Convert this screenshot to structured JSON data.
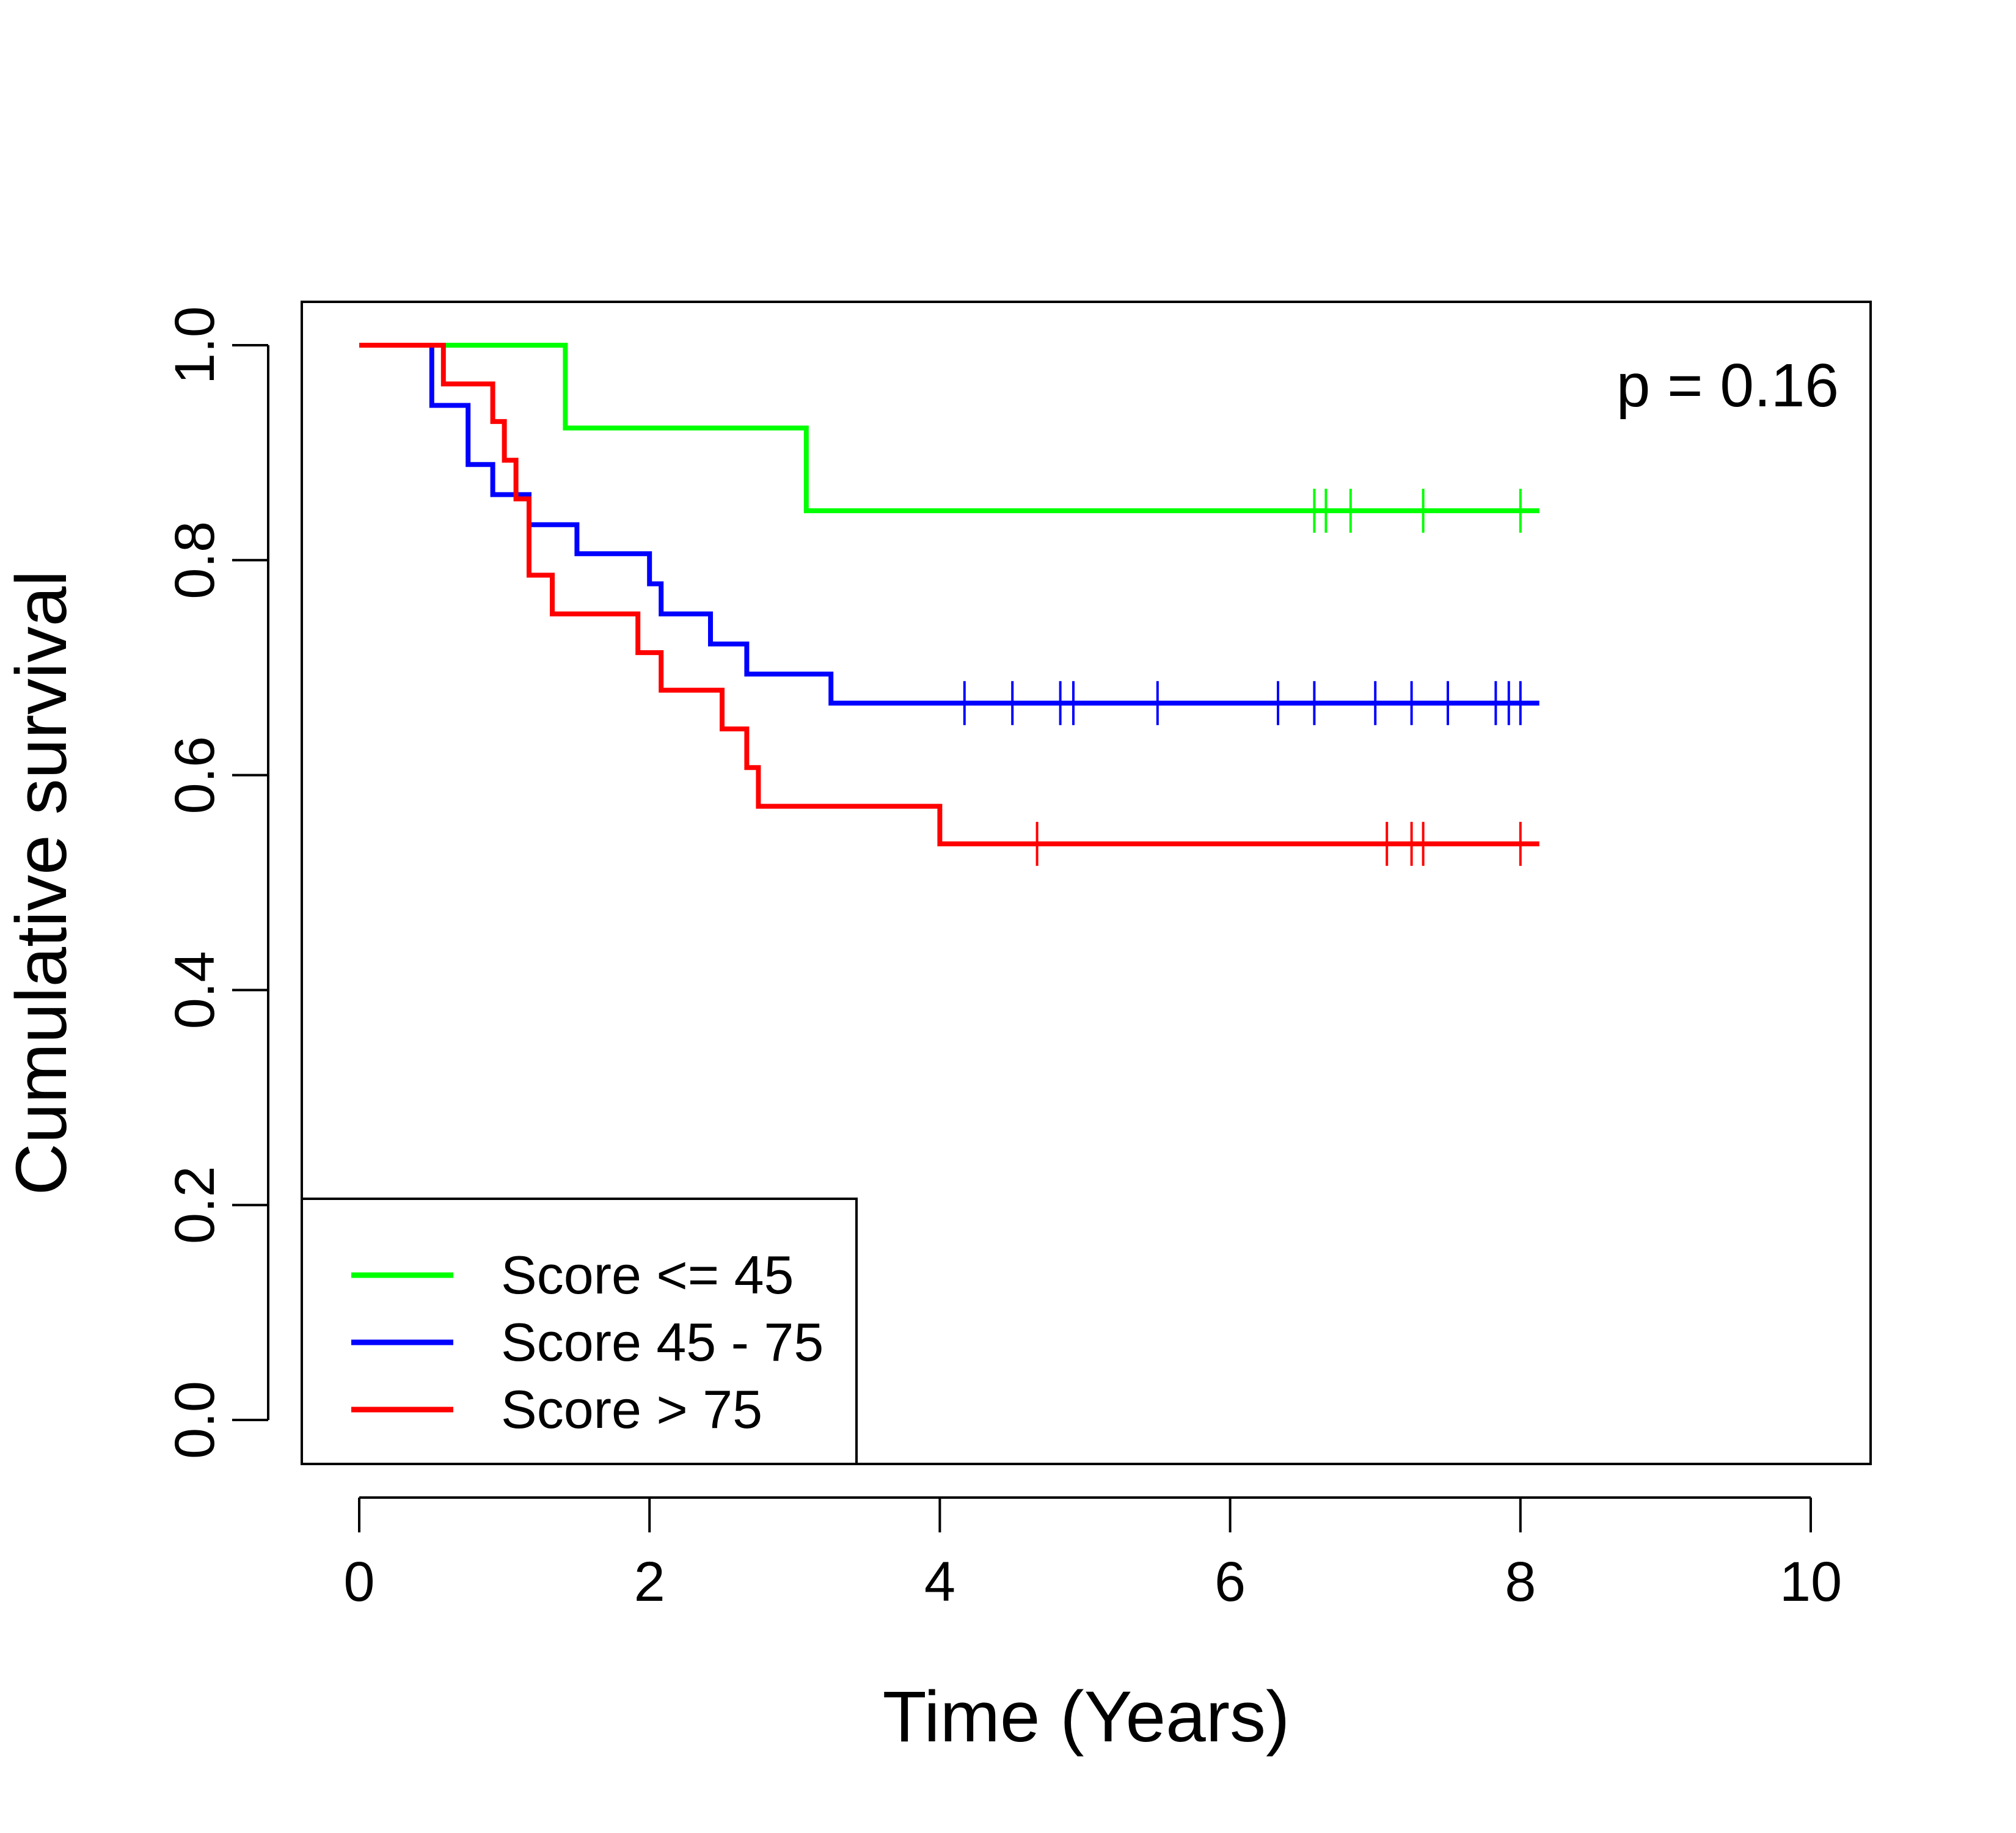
{
  "chart_data": {
    "type": "line",
    "subtype": "kaplan-meier step",
    "xlabel": "Time (Years)",
    "ylabel": "Cumulative survival",
    "xlim": [
      0,
      10
    ],
    "ylim": [
      0,
      1
    ],
    "xticks": [
      0,
      2,
      4,
      6,
      8,
      10
    ],
    "yticks": [
      0.0,
      0.2,
      0.4,
      0.6,
      0.8,
      1.0
    ],
    "xtick_labels": [
      "0",
      "2",
      "4",
      "6",
      "8",
      "10"
    ],
    "ytick_labels": [
      "0.0",
      "0.2",
      "0.4",
      "0.6",
      "0.8",
      "1.0"
    ],
    "grid": false,
    "legend_position": "bottom-left",
    "annotation": "p = 0.16",
    "series": [
      {
        "name": "Score <= 45",
        "color": "#00ff00",
        "end_x": 8.13,
        "steps": [
          [
            0,
            1.0
          ],
          [
            1.42,
            0.923
          ],
          [
            3.08,
            0.846
          ]
        ],
        "censor_x": [
          6.58,
          6.66,
          6.83,
          7.33,
          8.0
        ]
      },
      {
        "name": "Score 45 - 75",
        "color": "#0000ff",
        "end_x": 8.13,
        "steps": [
          [
            0,
            1.0
          ],
          [
            0.5,
            0.944
          ],
          [
            0.75,
            0.889
          ],
          [
            0.92,
            0.861
          ],
          [
            1.08,
            0.861
          ],
          [
            1.17,
            0.833
          ],
          [
            1.5,
            0.806
          ],
          [
            2.0,
            0.778
          ],
          [
            2.08,
            0.75
          ],
          [
            2.42,
            0.722
          ],
          [
            2.67,
            0.694
          ],
          [
            3.25,
            0.667
          ]
        ],
        "censor_x": [
          4.17,
          4.5,
          4.83,
          4.92,
          5.5,
          6.33,
          6.58,
          7.0,
          7.25,
          7.5,
          7.83,
          7.92,
          8.0
        ]
      },
      {
        "name": "Score > 75",
        "color": "#ff0000",
        "end_x": 8.13,
        "steps": [
          [
            0,
            1.0
          ],
          [
            0.58,
            0.964
          ],
          [
            0.92,
            0.929
          ],
          [
            1.0,
            0.893
          ],
          [
            1.08,
            0.857
          ],
          [
            1.17,
            0.786
          ],
          [
            1.33,
            0.75
          ],
          [
            1.92,
            0.714
          ],
          [
            2.08,
            0.679
          ],
          [
            2.5,
            0.643
          ],
          [
            2.67,
            0.607
          ],
          [
            2.75,
            0.571
          ],
          [
            4.0,
            0.536
          ]
        ],
        "censor_x": [
          4.67,
          7.08,
          7.25,
          7.33,
          8.0
        ]
      }
    ]
  }
}
